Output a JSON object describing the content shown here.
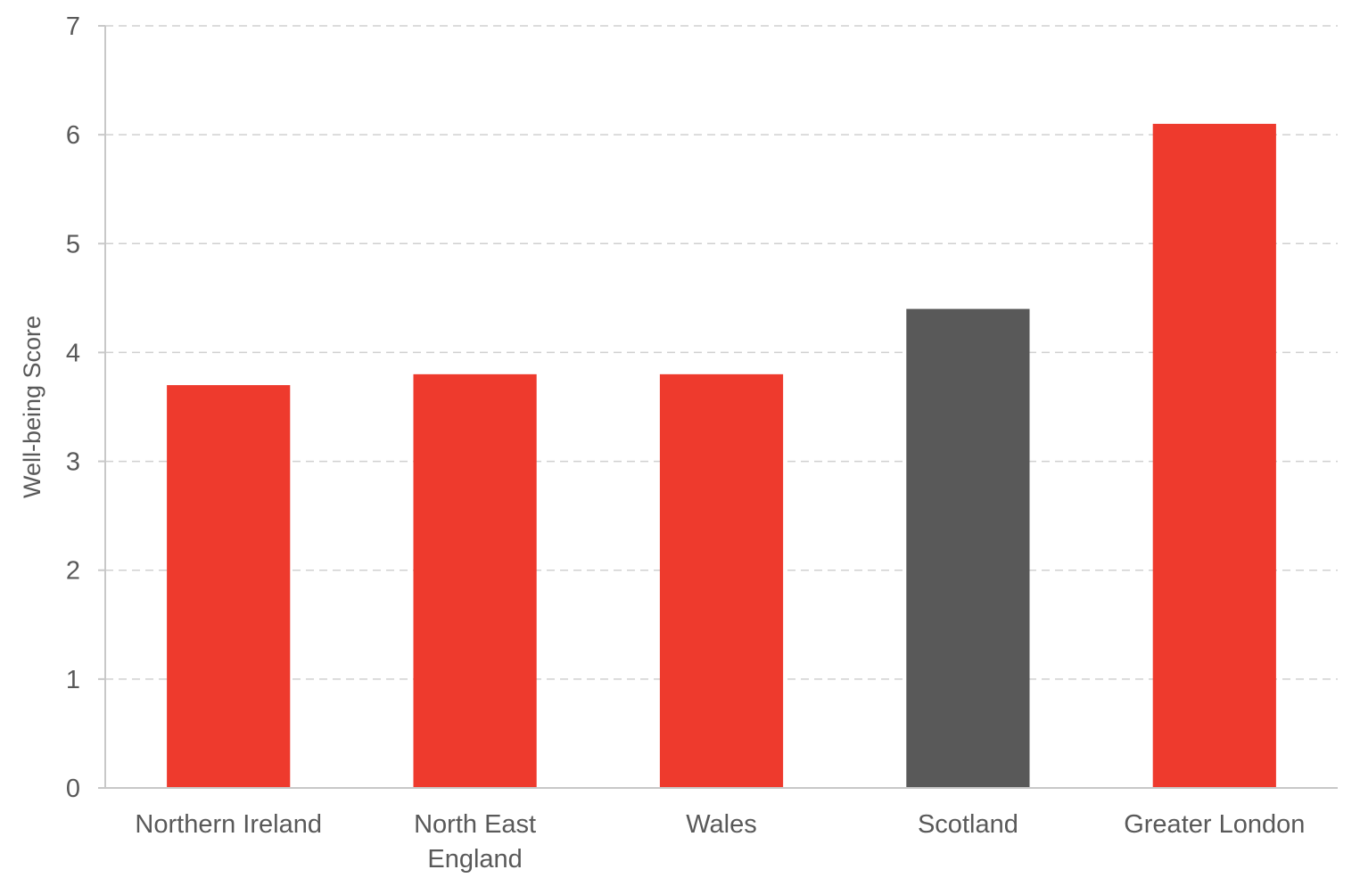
{
  "chart_data": {
    "type": "bar",
    "title": "",
    "xlabel": "",
    "ylabel": "Well-being Score",
    "ylim": [
      0,
      7
    ],
    "yticks": [
      "0",
      "1",
      "2",
      "3",
      "4",
      "5",
      "6",
      "7"
    ],
    "categories": [
      [
        "Northern Ireland"
      ],
      [
        "North East",
        "England"
      ],
      [
        "Wales"
      ],
      [
        "Scotland"
      ],
      [
        "Greater London"
      ]
    ],
    "values": [
      3.7,
      3.8,
      3.8,
      4.4,
      6.1
    ],
    "bar_colors": [
      "#ee3a2d",
      "#ee3a2d",
      "#ee3a2d",
      "#595959",
      "#ee3a2d"
    ],
    "grid": true,
    "legend": "none"
  }
}
